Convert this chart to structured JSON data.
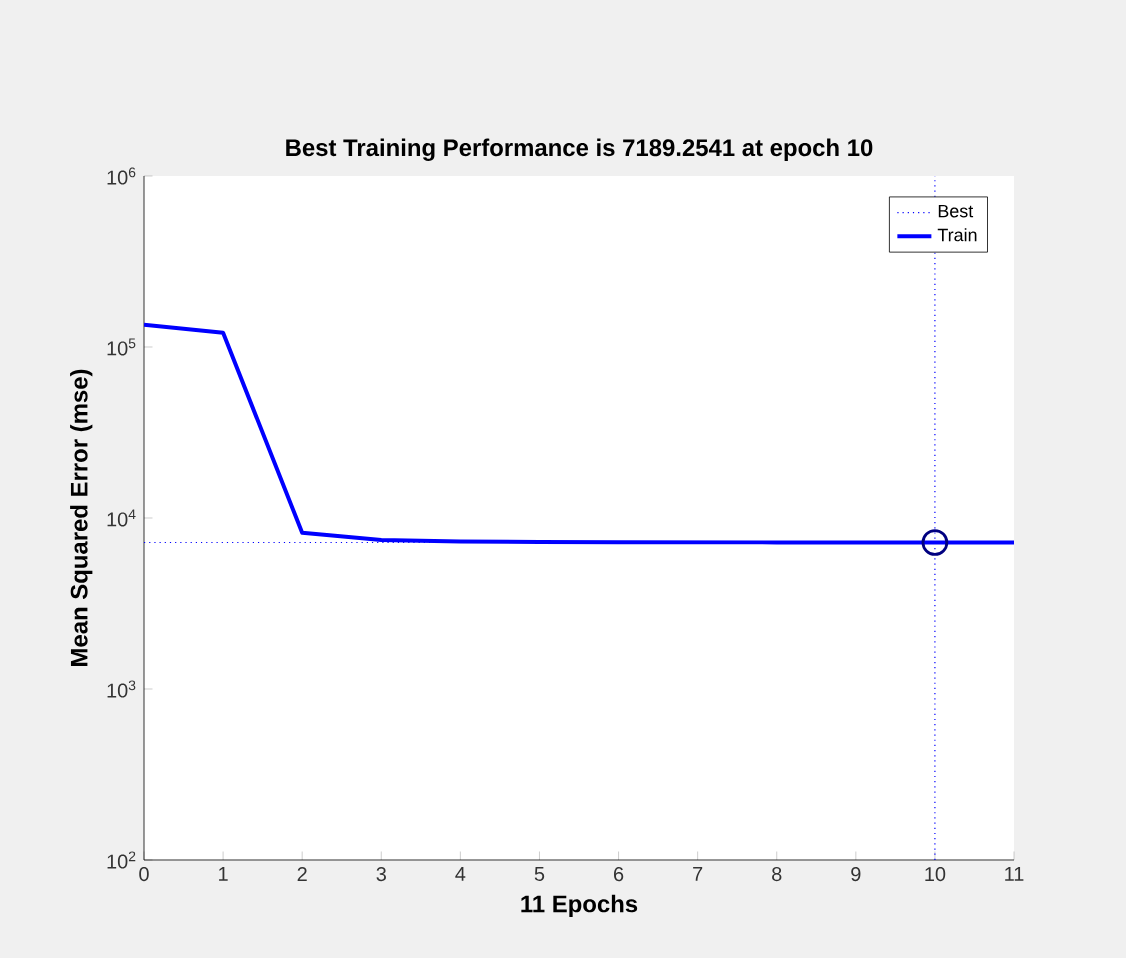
{
  "chart_data": {
    "type": "line",
    "title": "Best Training Performance is 7189.2541 at epoch 10",
    "xlabel": "11 Epochs",
    "ylabel": "Mean Squared Error  (mse)",
    "x": [
      0,
      1,
      2,
      3,
      4,
      5,
      6,
      7,
      8,
      9,
      10,
      11
    ],
    "series": [
      {
        "name": "Train",
        "color": "#0000ff",
        "values": [
          135000,
          121000,
          8200,
          7430,
          7300,
          7250,
          7220,
          7210,
          7200,
          7195,
          7189.2541,
          7189
        ]
      },
      {
        "type": "scatter",
        "color": "#000080",
        "marker": "circle",
        "x": [
          10
        ],
        "values": [
          7189.2541
        ]
      }
    ],
    "log": "y",
    "xlim": [
      0,
      11
    ],
    "ylim": [
      100,
      1000000
    ],
    "xticks": [
      0,
      1,
      2,
      3,
      4,
      5,
      6,
      7,
      8,
      9,
      10,
      11
    ],
    "yticks": [
      {
        "value": 100,
        "label": "10$^{2}$"
      },
      {
        "value": 1000,
        "label": "10$^{3}$"
      },
      {
        "value": 10000,
        "label": "10$^{4}$"
      },
      {
        "value": 100000,
        "label": "10$^{5}$"
      },
      {
        "value": 1000000,
        "label": "10$^{6}$"
      }
    ],
    "ref_lines": [
      {
        "axis": "x",
        "value": 10,
        "label": "Best",
        "color": "#0000ff",
        "line_style": "dotted"
      },
      {
        "axis": "y",
        "value": 7189.2541,
        "color": "#0000ff",
        "line_style": "dotted"
      }
    ],
    "legend": "top right",
    "grid": false
  }
}
